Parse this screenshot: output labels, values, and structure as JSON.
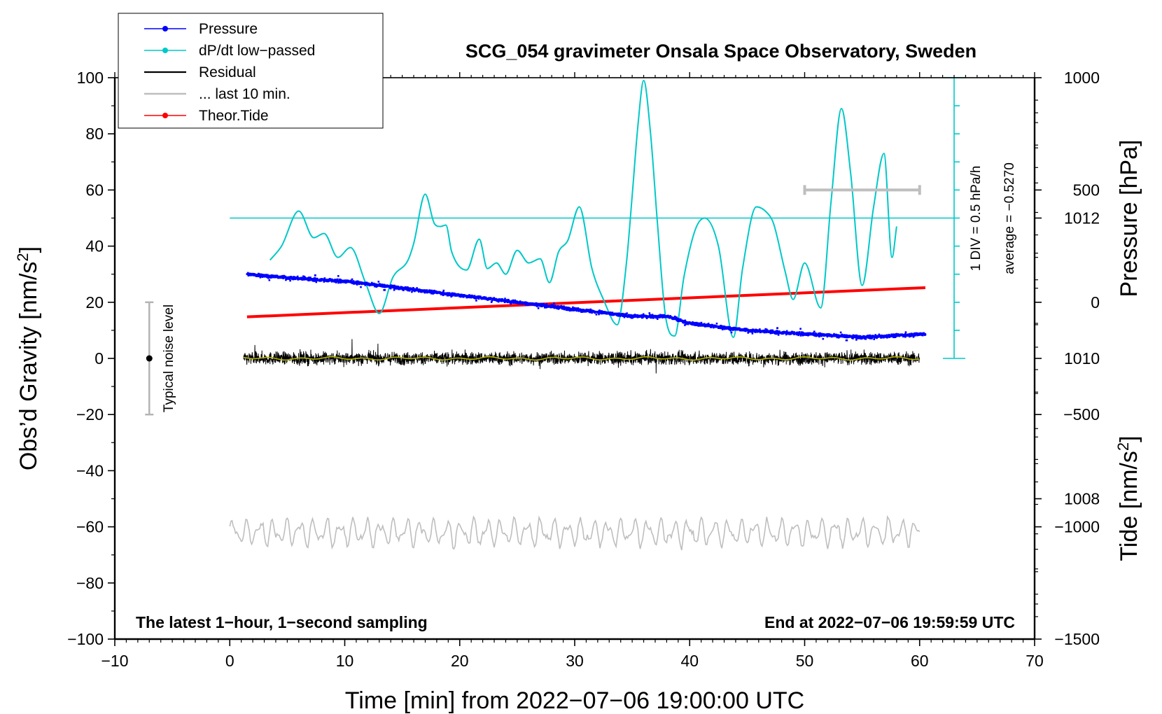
{
  "chart_data": {
    "type": "line",
    "title": "SCG_054 gravimeter Onsala Space Observatory, Sweden",
    "xlabel": "Time [min] from 2022−07−06 19:00:00 UTC",
    "ylabel_left": "Obs’d Gravity [nm/s",
    "ylabel_left_sup": "2",
    "ylabel_left_end": "]",
    "ylabel_right_top": "Pressure [hPa]",
    "ylabel_right_bottom": "Tide [nm/s",
    "ylabel_right_bottom_sup": "2",
    "ylabel_right_bottom_end": "]",
    "xlim": [
      -10,
      70
    ],
    "ylim": [
      -100,
      100
    ],
    "x_ticks": [
      -10,
      0,
      10,
      20,
      30,
      40,
      50,
      60,
      70
    ],
    "x_tick_labels": [
      "−10",
      "0",
      "10",
      "20",
      "30",
      "40",
      "50",
      "60",
      "70"
    ],
    "y_ticks": [
      -100,
      -80,
      -60,
      -40,
      -20,
      0,
      20,
      40,
      60,
      80,
      100
    ],
    "y_tick_labels": [
      "−100",
      "−80",
      "−60",
      "−40",
      "−20",
      "0",
      "20",
      "40",
      "60",
      "80",
      "100"
    ],
    "pressure_axis": {
      "range": [
        1006,
        1014
      ],
      "ticks": [
        1008,
        1010,
        1012
      ],
      "tick_labels": [
        "1008",
        "1010",
        "1012"
      ]
    },
    "tide_axis": {
      "range": [
        -1500,
        1000
      ],
      "ticks": [
        -1500,
        -1000,
        -500,
        0,
        500,
        1000
      ],
      "tick_labels": [
        "−1500",
        "−1000",
        "−500",
        "0",
        "500",
        "1000"
      ]
    },
    "legend": [
      {
        "name": "Pressure",
        "color": "#0000ff",
        "style": "line-dot"
      },
      {
        "name": "dP/dt low−passed",
        "color": "#00c8c8",
        "style": "line-dot"
      },
      {
        "name": "Residual",
        "color": "#000000",
        "style": "line"
      },
      {
        "name": "... last 10 min.",
        "color": "#bebebe",
        "style": "line"
      },
      {
        "name": "Theor.Tide",
        "color": "#ff0000",
        "style": "line-dot"
      }
    ],
    "legend_position": "top-left",
    "series": [
      {
        "name": "Pressure",
        "axis": "pressure",
        "color": "#0000ff",
        "x": [
          1.5,
          5,
          10,
          15,
          20,
          25,
          30,
          35,
          38,
          40,
          45,
          50,
          55,
          60.5
        ],
        "y": [
          1011.2,
          1011.15,
          1011.1,
          1011.0,
          1010.9,
          1010.8,
          1010.7,
          1010.6,
          1010.6,
          1010.5,
          1010.4,
          1010.35,
          1010.3,
          1010.35
        ]
      },
      {
        "name": "dP/dt low−passed",
        "axis": "gravity",
        "color": "#00c8c8",
        "x": [
          3.5,
          4.5,
          6.0,
          7.3,
          8.2,
          9.4,
          10.5,
          11.8,
          13.0,
          14.2,
          15.5,
          16.0,
          17.0,
          17.8,
          18.3,
          18.8,
          19.3,
          20.6,
          21.7,
          22.4,
          23.2,
          24.0,
          25.0,
          26.0,
          27.0,
          27.8,
          28.6,
          29.4,
          30.4,
          31.5,
          32.5,
          33.7,
          34.5,
          35.0,
          35.5,
          36.0,
          36.6,
          37.2,
          37.9,
          38.7,
          39.5,
          40.5,
          41.3,
          42.5,
          43.8,
          44.6,
          45.8,
          46.7,
          47.3,
          48.3,
          49.0,
          50.0,
          51.4,
          52.3,
          53.2,
          54.0,
          55.0,
          56.0,
          56.9,
          57.6,
          58.0
        ],
        "y": [
          35,
          40,
          52.5,
          43,
          44.5,
          36,
          39.5,
          27,
          16,
          29,
          35,
          41,
          58.5,
          48,
          47,
          47.5,
          38,
          31.5,
          42.5,
          32,
          34,
          30,
          38.5,
          34,
          35.5,
          27,
          38,
          42,
          54,
          32,
          21,
          12,
          34,
          58,
          83,
          99,
          80,
          48,
          15,
          8,
          29,
          46,
          50,
          40,
          7.5,
          32,
          54,
          52,
          48,
          31,
          21,
          34,
          18,
          56,
          89,
          66,
          26,
          54,
          73,
          36,
          47
        ]
      },
      {
        "name": "Residual",
        "axis": "gravity",
        "color": "#000000",
        "x": [
          1.2,
          60.0
        ],
        "y": [
          0,
          0
        ]
      },
      {
        "name": "... last 10 min.",
        "axis": "gravity",
        "color": "#bebebe",
        "x": [
          0,
          60.0
        ],
        "y": [
          -62,
          -62
        ]
      },
      {
        "name": "Theor.Tide",
        "axis": "tide",
        "color": "#ff0000",
        "x": [
          1.5,
          60.5
        ],
        "y": [
          -65,
          65
        ]
      }
    ],
    "reference_lines": [
      {
        "name": "pressure-average-line",
        "axis": "gravity",
        "y": 50,
        "color": "#00c8c8"
      }
    ],
    "dpdt_scale": {
      "label": "1 DIV = 0.5 hPa/h",
      "average_label": "average = −0.5270",
      "x": 63,
      "range": [
        0,
        100
      ]
    },
    "noise_bar": {
      "x": -7,
      "y_range": [
        -20,
        20
      ],
      "center": 0,
      "label": "Typical noise level"
    },
    "last10_bracket": {
      "x_range": [
        50,
        60
      ],
      "tide_value": 500
    },
    "annotations": {
      "bottom_left": "The latest 1−hour, 1−second sampling",
      "bottom_right": "End at 2022−07−06 19:59:59 UTC"
    }
  },
  "colors": {
    "pressure": "#0000ff",
    "dpdt": "#00c8c8",
    "residual": "#000000",
    "residual_mean": "#b4b400",
    "last10": "#bebebe",
    "tide": "#ff0000"
  }
}
